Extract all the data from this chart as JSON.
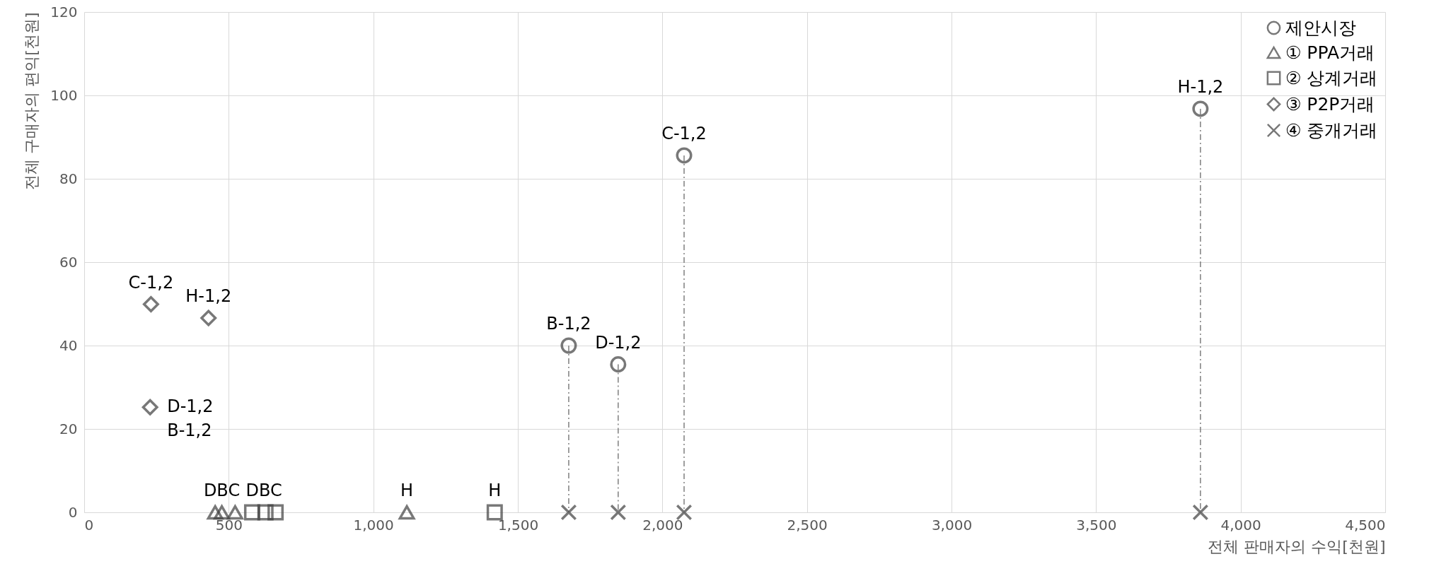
{
  "chart_data": {
    "type": "scatter",
    "xlabel": "전체 판매자의 수익[천원]",
    "ylabel": "전체 구매자의 편익[천원]",
    "xlim": [
      0,
      4500
    ],
    "xticks": [
      0,
      {
        "value": 500,
        "label": "500"
      },
      {
        "value": 1000,
        "label": "1,000"
      },
      {
        "value": 1500,
        "label": "1,500"
      },
      {
        "value": 2000,
        "label": "2,000"
      },
      {
        "value": 2500,
        "label": "2,500"
      },
      {
        "value": 3000,
        "label": "3,000"
      },
      {
        "value": 3500,
        "label": "3,500"
      },
      {
        "value": 4000,
        "label": "4,000"
      },
      {
        "value": 4500,
        "label": "4,500"
      }
    ],
    "ylim": [
      0,
      120
    ],
    "yticks": [
      0,
      20,
      40,
      60,
      80,
      100,
      120
    ],
    "grid": true,
    "legend": "top right",
    "series": [
      {
        "name": "제안시장",
        "color": "#404040",
        "marker": "circle",
        "x": [
          1676,
          1847,
          2075,
          3861
        ],
        "values": [
          40,
          35.5,
          85.6,
          96.8
        ]
      },
      {
        "name": "① PPA거래",
        "color": "#404040",
        "marker": "triangle",
        "x": [
          453,
          476,
          522,
          1116
        ],
        "values": [
          0,
          0,
          0,
          0
        ]
      },
      {
        "name": "② 상계거래",
        "color": "#404040",
        "marker": "square",
        "x": [
          581,
          627,
          662,
          1420
        ],
        "values": [
          0,
          0,
          0,
          0
        ]
      },
      {
        "name": "③ P2P거래",
        "color": "#404040",
        "marker": "diamond",
        "x": [
          231,
          430,
          228
        ],
        "values": [
          49.9,
          46.6,
          25.2
        ]
      },
      {
        "name": "④ 중개거래",
        "color": "#404040",
        "marker": "cross",
        "x": [
          1676,
          1847,
          2075,
          3861
        ],
        "values": [
          0,
          0,
          0,
          0
        ]
      },
      {
        "type": "line",
        "color": "#7f7f7f",
        "line_style": "dashed",
        "x": [
          1676,
          1676
        ],
        "values": [
          40,
          0
        ]
      },
      {
        "type": "line",
        "color": "#7f7f7f",
        "line_style": "dashed",
        "x": [
          1847,
          1847
        ],
        "values": [
          35.5,
          0
        ]
      },
      {
        "type": "line",
        "color": "#7f7f7f",
        "line_style": "dashed",
        "x": [
          2075,
          2075
        ],
        "values": [
          85.6,
          0
        ]
      },
      {
        "type": "line",
        "color": "#7f7f7f",
        "line_style": "dashed",
        "x": [
          3861,
          3861
        ],
        "values": [
          96.8,
          0
        ]
      }
    ],
    "annotations": [
      {
        "text": "B-1,2",
        "x": 1676,
        "y": 40
      },
      {
        "text": "D-1,2",
        "x": 1847,
        "y": 35.5
      },
      {
        "text": "C-1,2",
        "x": 2075,
        "y": 85.6
      },
      {
        "text": "H-1,2",
        "x": 3861,
        "y": 96.8
      },
      {
        "text": "C-1,2",
        "x": 231,
        "y": 49.9
      },
      {
        "text": "H-1,2",
        "x": 430,
        "y": 46.6
      },
      {
        "text": "D-1,2",
        "x": 228,
        "y": 25.2
      },
      {
        "text": "B-1,2",
        "x": 228,
        "y": 25.2
      },
      {
        "text": "DBC",
        "x": 476,
        "y": 0
      },
      {
        "text": "H",
        "x": 1116,
        "y": 0
      },
      {
        "text": "DBC",
        "x": 622,
        "y": 0
      },
      {
        "text": "H",
        "x": 1420,
        "y": 0
      }
    ]
  }
}
